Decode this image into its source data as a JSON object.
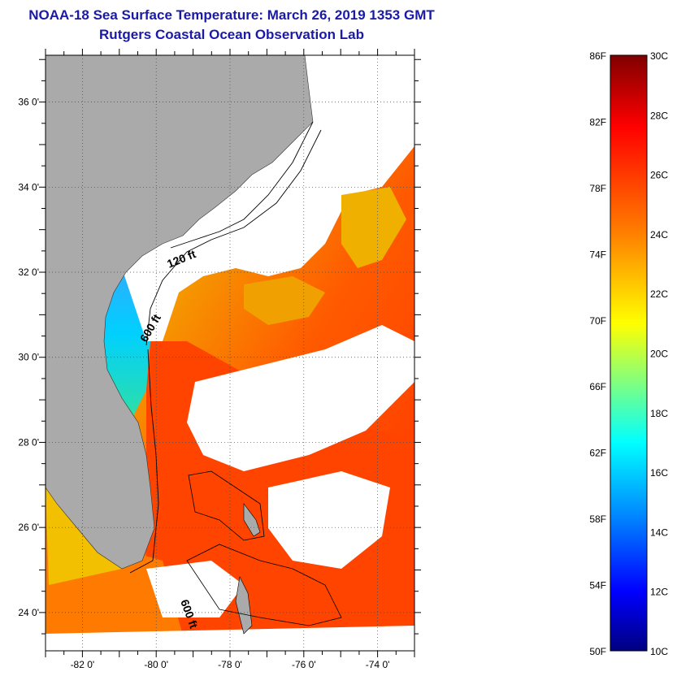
{
  "title": {
    "line1": "NOAA-18 Sea Surface Temperature:  March 26, 2019 1353 GMT",
    "line2": "Rutgers Coastal Ocean Observation Lab"
  },
  "map": {
    "lat_ticks": [
      {
        "value": 36,
        "label": "36 0'"
      },
      {
        "value": 34,
        "label": "34 0'"
      },
      {
        "value": 32,
        "label": "32 0'"
      },
      {
        "value": 30,
        "label": "30 0'"
      },
      {
        "value": 28,
        "label": "28 0'"
      },
      {
        "value": 26,
        "label": "26 0'"
      },
      {
        "value": 24,
        "label": "24 0'"
      }
    ],
    "lon_ticks": [
      {
        "value": -82,
        "label": "-82 0'"
      },
      {
        "value": -80,
        "label": "-80 0'"
      },
      {
        "value": -78,
        "label": "-78 0'"
      },
      {
        "value": -76,
        "label": "-76 0'"
      },
      {
        "value": -74,
        "label": "-74 0'"
      }
    ],
    "lat_range": [
      23.1,
      37.1
    ],
    "lon_range": [
      -83.0,
      -73.0
    ],
    "contour_labels": [
      "120 ft",
      "600 ft",
      "600 ft"
    ],
    "colors": {
      "land": "#aaaaaa",
      "cloud": "#ffffff",
      "contour": "#000000"
    }
  },
  "colorbar": {
    "fahrenheit": [
      "86F",
      "82F",
      "78F",
      "74F",
      "70F",
      "66F",
      "62F",
      "58F",
      "54F",
      "50F"
    ],
    "celsius": [
      "30C",
      "28C",
      "26C",
      "24C",
      "22C",
      "20C",
      "18C",
      "16C",
      "14C",
      "12C",
      "10C"
    ],
    "range_c": [
      10,
      30
    ],
    "colors": [
      "#800000",
      "#ff0000",
      "#ff8000",
      "#ffff00",
      "#80ff80",
      "#00ffff",
      "#0080ff",
      "#0000ff",
      "#000080"
    ]
  }
}
